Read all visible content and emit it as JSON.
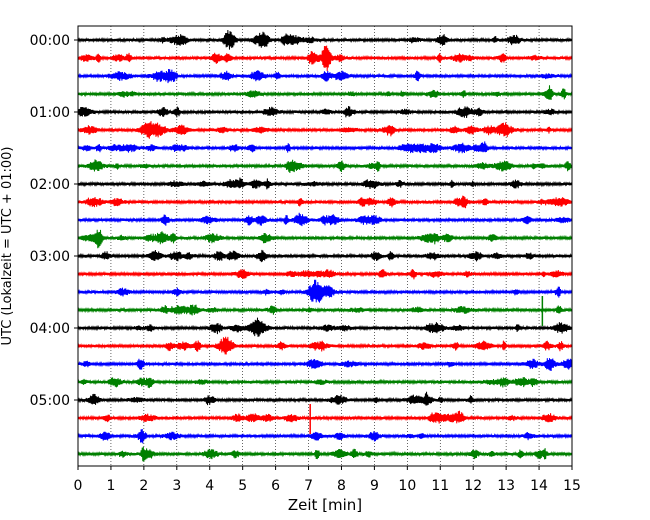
{
  "chart_data": {
    "type": "line",
    "subtype": "helicorder-seismogram",
    "title": "",
    "xlabel": "Zeit  [min]",
    "ylabel": "UTC (Lokalzeit = UTC + 01:00)",
    "xlim": [
      0,
      15
    ],
    "x_ticks": [
      "0",
      "1",
      "2",
      "3",
      "4",
      "5",
      "6",
      "7",
      "8",
      "9",
      "10",
      "11",
      "12",
      "13",
      "14",
      "15"
    ],
    "y_tick_labels": [
      "00:00",
      "01:00",
      "02:00",
      "03:00",
      "04:00",
      "05:00"
    ],
    "grid": "vertical-dotted",
    "minutes_per_line": 15,
    "line_colors": [
      "#000000",
      "#ff0000",
      "#0000ff",
      "#008000"
    ],
    "traces": [
      {
        "start": "00:00",
        "color": "#000000"
      },
      {
        "start": "00:15",
        "color": "#ff0000"
      },
      {
        "start": "00:30",
        "color": "#0000ff"
      },
      {
        "start": "00:45",
        "color": "#008000"
      },
      {
        "start": "01:00",
        "color": "#000000"
      },
      {
        "start": "01:15",
        "color": "#ff0000"
      },
      {
        "start": "01:30",
        "color": "#0000ff"
      },
      {
        "start": "01:45",
        "color": "#008000"
      },
      {
        "start": "02:00",
        "color": "#000000"
      },
      {
        "start": "02:15",
        "color": "#ff0000"
      },
      {
        "start": "02:30",
        "color": "#0000ff"
      },
      {
        "start": "02:45",
        "color": "#008000"
      },
      {
        "start": "03:00",
        "color": "#000000"
      },
      {
        "start": "03:15",
        "color": "#ff0000"
      },
      {
        "start": "03:30",
        "color": "#0000ff"
      },
      {
        "start": "03:45",
        "color": "#008000"
      },
      {
        "start": "04:00",
        "color": "#000000"
      },
      {
        "start": "04:15",
        "color": "#ff0000"
      },
      {
        "start": "04:30",
        "color": "#0000ff"
      },
      {
        "start": "04:45",
        "color": "#008000"
      },
      {
        "start": "05:00",
        "color": "#000000"
      },
      {
        "start": "05:15",
        "color": "#ff0000"
      },
      {
        "start": "05:30",
        "color": "#0000ff"
      },
      {
        "start": "05:45",
        "color": "#008000"
      }
    ],
    "events": [
      {
        "trace": "05:15",
        "minute": 7.05,
        "description": "spike"
      },
      {
        "trace": "03:45",
        "minute": 14.1,
        "description": "spike"
      }
    ]
  }
}
